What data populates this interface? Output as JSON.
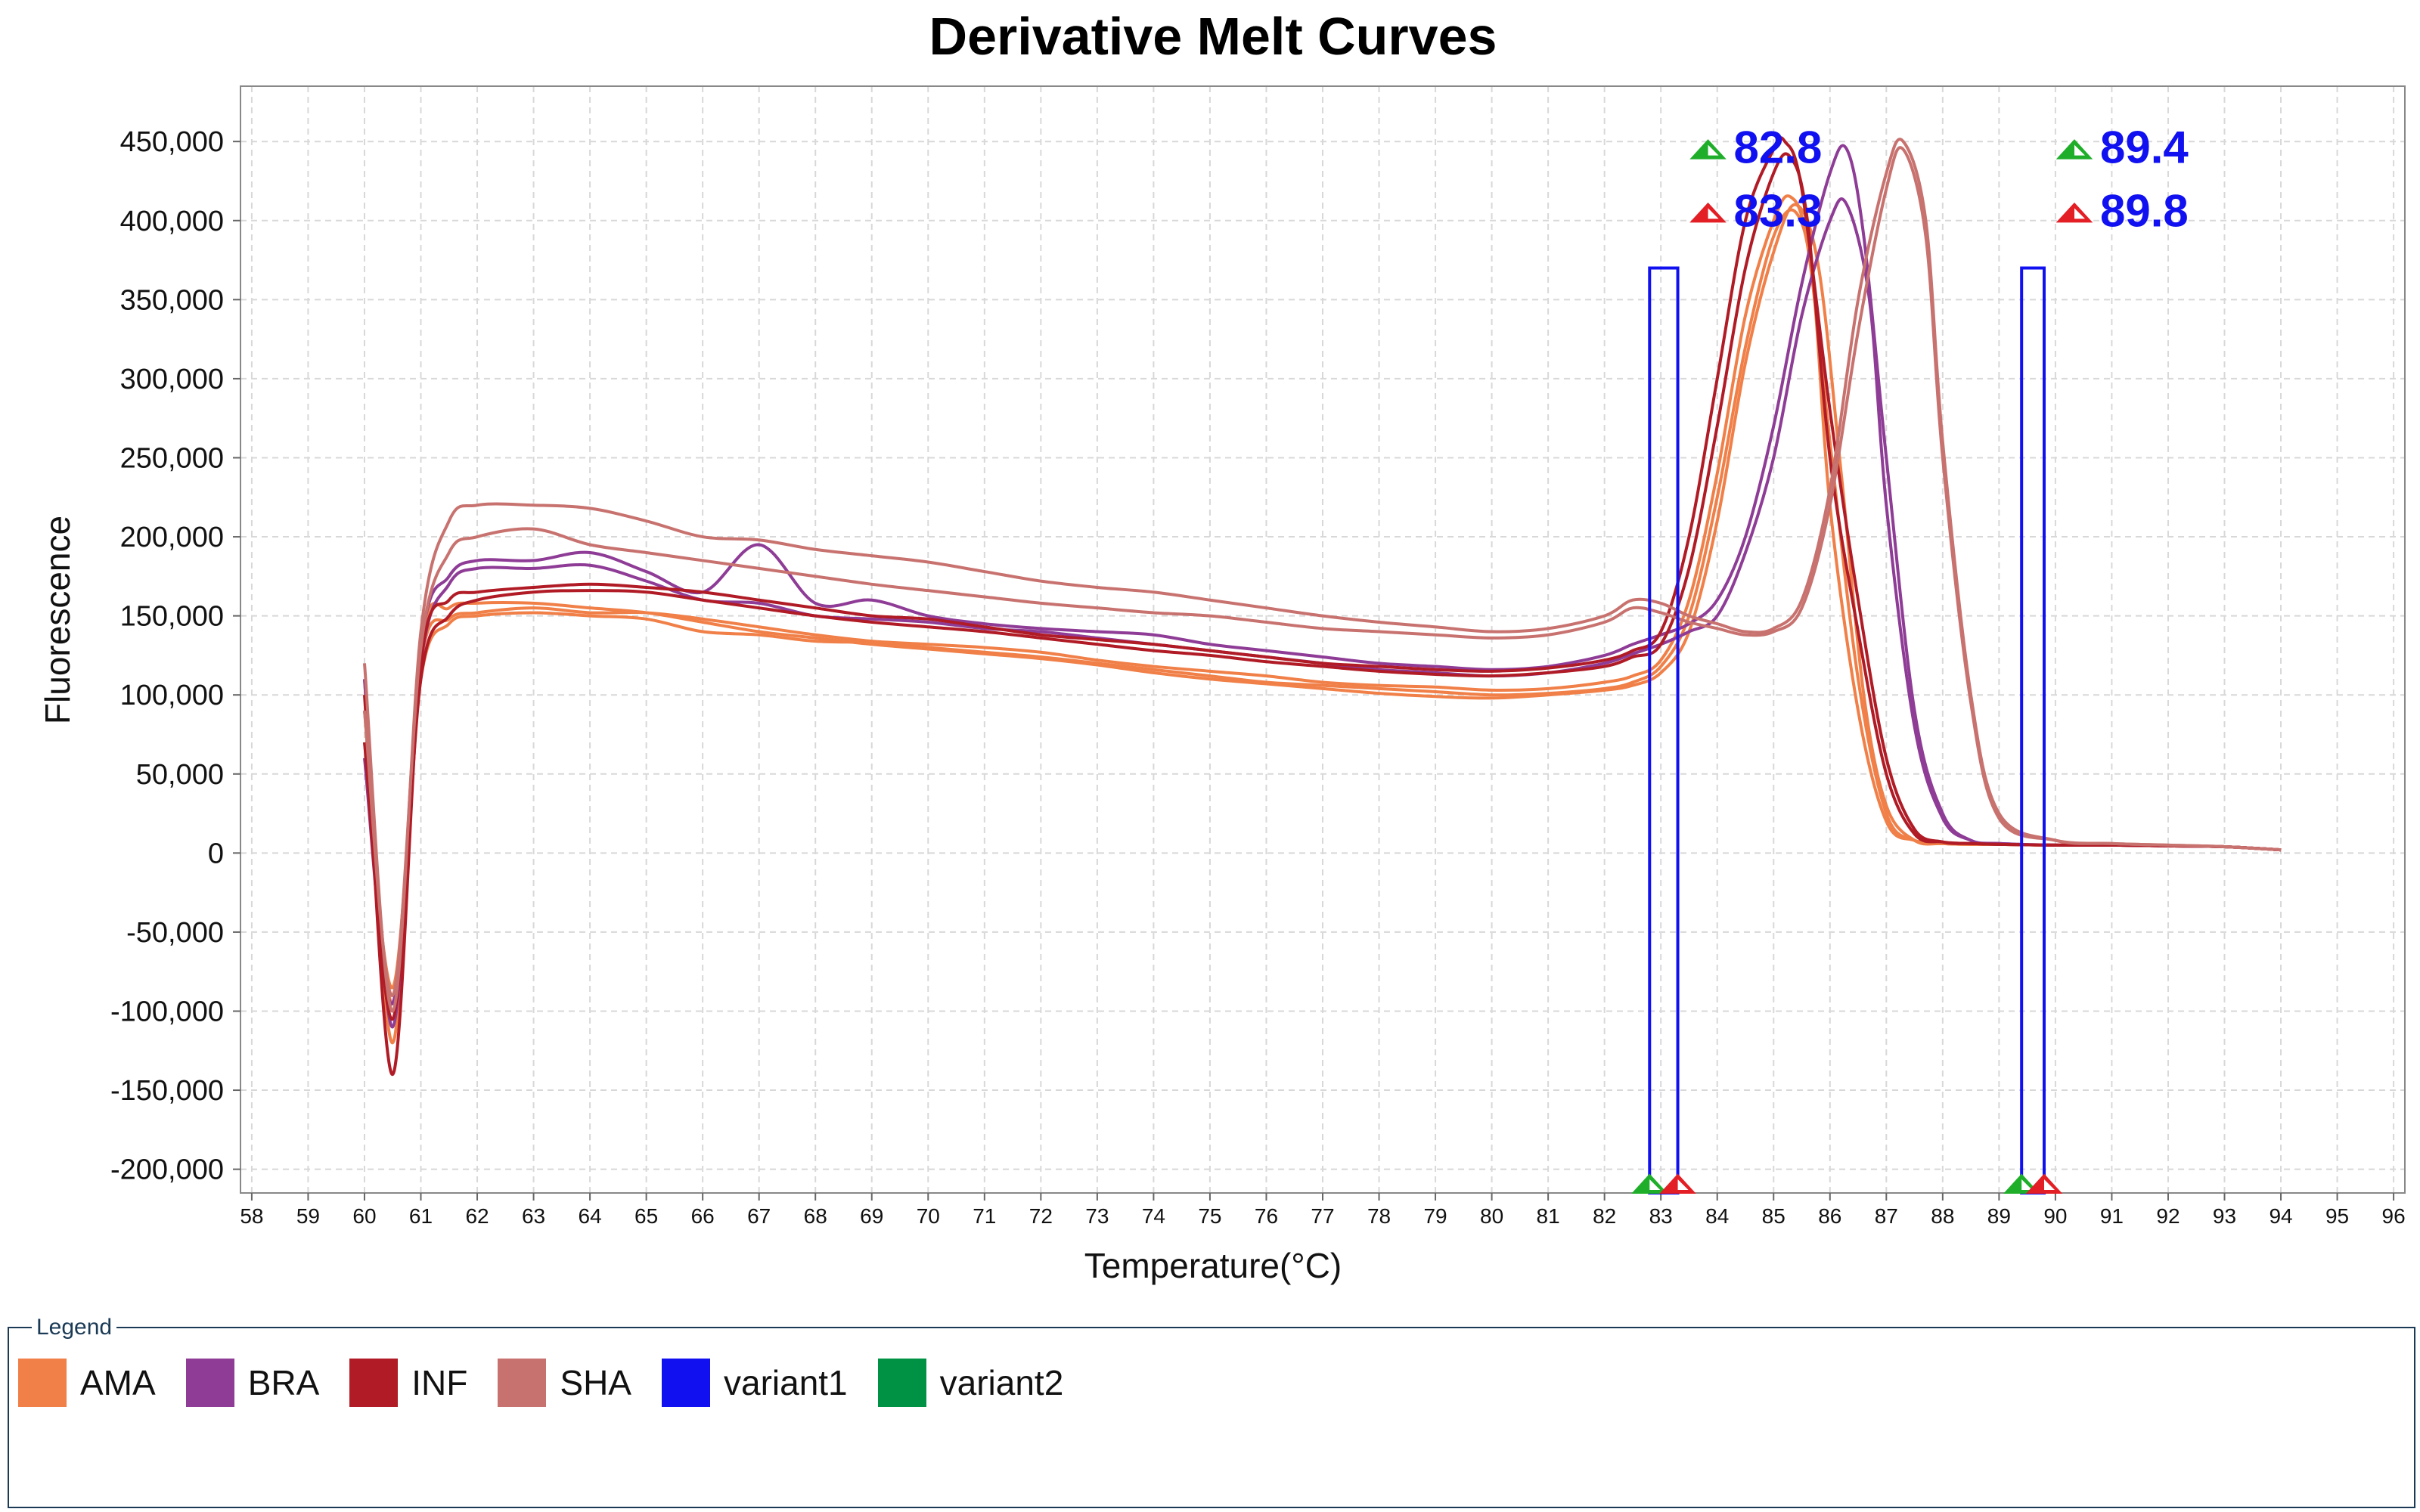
{
  "chart_data": {
    "type": "line",
    "title": "Derivative Melt Curves",
    "xlabel": "Temperature(°C)",
    "ylabel": "Fluorescence",
    "xlim": [
      57.8,
      96.2
    ],
    "ylim": [
      -215000,
      485000
    ],
    "x_ticks": [
      58,
      59,
      60,
      61,
      62,
      63,
      64,
      65,
      66,
      67,
      68,
      69,
      70,
      71,
      72,
      73,
      74,
      75,
      76,
      77,
      78,
      79,
      80,
      81,
      82,
      83,
      84,
      85,
      86,
      87,
      88,
      89,
      90,
      91,
      92,
      93,
      94,
      95,
      96
    ],
    "y_ticks": [
      450000,
      400000,
      350000,
      300000,
      250000,
      200000,
      150000,
      100000,
      50000,
      0,
      -50000,
      -100000,
      -150000,
      -200000
    ],
    "y_tick_labels": [
      "450,000",
      "400,000",
      "350,000",
      "300,000",
      "250,000",
      "200,000",
      "150,000",
      "100,000",
      "50,000",
      "0",
      "-50,000",
      "-100,000",
      "-150,000",
      "-200,000"
    ],
    "grid": true,
    "legend": {
      "title": "Legend",
      "placement": "bottom",
      "entries": [
        {
          "name": "AMA",
          "color": "#f07f48"
        },
        {
          "name": "BRA",
          "color": "#8e3c96"
        },
        {
          "name": "INF",
          "color": "#b01b25"
        },
        {
          "name": "SHA",
          "color": "#c8726f"
        },
        {
          "name": "variant1",
          "color": "#1010f0"
        },
        {
          "name": "variant2",
          "color": "#009244"
        }
      ]
    },
    "regions": [
      {
        "name": "variant1",
        "color": "#1010f0",
        "x_start": 82.8,
        "x_end": 83.3,
        "y_top": 370000
      },
      {
        "name": "variant2",
        "color": "#1010f0",
        "x_start": 89.4,
        "x_end": 89.8,
        "y_top": 370000
      }
    ],
    "markers": [
      {
        "label": "82.8",
        "x": 82.8,
        "color": "#1fae2a"
      },
      {
        "label": "83.3",
        "x": 83.3,
        "color": "#e31e24"
      },
      {
        "label": "89.4",
        "x": 89.4,
        "color": "#1fae2a"
      },
      {
        "label": "89.8",
        "x": 89.8,
        "color": "#e31e24"
      }
    ],
    "series": [
      {
        "name": "AMA",
        "color": "#f07f48",
        "x": [
          60,
          60.5,
          61,
          61.5,
          62,
          63,
          64,
          65,
          66,
          67,
          68,
          69,
          70,
          71,
          72,
          73,
          74,
          75,
          76,
          77,
          78,
          79,
          80,
          81,
          82,
          82.5,
          83,
          83.5,
          84,
          84.5,
          85,
          85.3,
          85.6,
          86,
          86.5,
          87,
          87.5,
          88,
          88.5,
          89,
          90,
          91,
          92,
          93,
          94
        ],
        "values": [
          90000,
          -95000,
          120000,
          148000,
          152000,
          155000,
          152000,
          152000,
          148000,
          143000,
          138000,
          134000,
          132000,
          130000,
          127000,
          122000,
          118000,
          115000,
          112000,
          108000,
          106000,
          105000,
          103000,
          104000,
          108000,
          112000,
          122000,
          160000,
          240000,
          340000,
          400000,
          415000,
          385000,
          260000,
          110000,
          25000,
          8000,
          6000,
          5500,
          5500,
          5000,
          5000,
          4500,
          4000,
          2000
        ]
      },
      {
        "name": "AMA",
        "color": "#f07f48",
        "x": [
          60,
          60.5,
          61,
          61.5,
          62,
          63,
          64,
          65,
          66,
          67,
          68,
          69,
          70,
          71,
          72,
          73,
          74,
          75,
          76,
          77,
          78,
          79,
          80,
          81,
          82,
          82.5,
          83,
          83.5,
          84,
          84.5,
          85,
          85.4,
          85.7,
          86,
          86.5,
          87,
          87.5,
          88,
          88.5,
          89,
          90,
          91,
          92,
          93,
          94
        ],
        "values": [
          70000,
          -85000,
          110000,
          145000,
          150000,
          152000,
          150000,
          148000,
          140000,
          138000,
          134000,
          133000,
          130000,
          127000,
          124000,
          120000,
          116000,
          112000,
          108000,
          106000,
          104000,
          102000,
          100000,
          101000,
          104000,
          108000,
          118000,
          150000,
          225000,
          320000,
          390000,
          405000,
          360000,
          220000,
          90000,
          20000,
          8000,
          6000,
          5500,
          5500,
          5000,
          5000,
          4500,
          4000,
          2000
        ]
      },
      {
        "name": "AMA",
        "color": "#f07f48",
        "x": [
          60,
          60.5,
          61,
          61.5,
          62,
          63,
          64,
          65,
          66,
          67,
          68,
          69,
          70,
          71,
          72,
          73,
          74,
          75,
          76,
          77,
          78,
          79,
          80,
          81,
          82,
          82.5,
          83,
          83.5,
          84,
          84.5,
          85,
          85.4,
          85.8,
          86.2,
          86.6,
          87,
          87.5,
          88,
          88.5,
          89,
          90,
          91,
          92,
          93,
          94
        ],
        "values": [
          110000,
          -120000,
          130000,
          155000,
          158000,
          158000,
          155000,
          152000,
          146000,
          140000,
          136000,
          132000,
          129000,
          126000,
          123000,
          119000,
          114000,
          110000,
          107000,
          104000,
          101000,
          99000,
          98000,
          100000,
          103000,
          106000,
          114000,
          140000,
          210000,
          310000,
          380000,
          410000,
          370000,
          240000,
          100000,
          30000,
          8000,
          6000,
          5500,
          5500,
          5000,
          5000,
          4500,
          4000,
          2000
        ]
      },
      {
        "name": "BRA",
        "color": "#8e3c96",
        "x": [
          60,
          60.5,
          61,
          61.5,
          62,
          63,
          64,
          65,
          66,
          67,
          68,
          69,
          70,
          71,
          72,
          73,
          74,
          75,
          76,
          77,
          78,
          79,
          80,
          81,
          82,
          82.5,
          83,
          83.5,
          84,
          84.5,
          85,
          85.5,
          86,
          86.3,
          86.6,
          87,
          87.5,
          88,
          88.5,
          89,
          90,
          91,
          92,
          93,
          94
        ],
        "values": [
          110000,
          -110000,
          130000,
          175000,
          185000,
          185000,
          190000,
          178000,
          165000,
          195000,
          158000,
          160000,
          150000,
          145000,
          142000,
          140000,
          138000,
          132000,
          128000,
          124000,
          120000,
          118000,
          116000,
          118000,
          125000,
          132000,
          138000,
          145000,
          160000,
          200000,
          270000,
          360000,
          430000,
          445000,
          390000,
          250000,
          90000,
          25000,
          8000,
          6000,
          5000,
          5000,
          4500,
          4000,
          2000
        ]
      },
      {
        "name": "BRA",
        "color": "#8e3c96",
        "x": [
          60,
          60.5,
          61,
          61.5,
          62,
          63,
          64,
          65,
          66,
          67,
          68,
          69,
          70,
          71,
          72,
          73,
          74,
          75,
          76,
          77,
          78,
          79,
          80,
          81,
          82,
          82.5,
          83,
          83.5,
          84,
          84.5,
          85,
          85.5,
          86,
          86.3,
          86.7,
          87,
          87.5,
          88,
          88.5,
          89,
          90,
          91,
          92,
          93,
          94
        ],
        "values": [
          60000,
          -95000,
          120000,
          170000,
          180000,
          180000,
          182000,
          172000,
          160000,
          158000,
          150000,
          148000,
          146000,
          142000,
          140000,
          136000,
          132000,
          128000,
          124000,
          120000,
          116000,
          114000,
          112000,
          114000,
          120000,
          126000,
          132000,
          140000,
          150000,
          190000,
          250000,
          340000,
          400000,
          410000,
          350000,
          220000,
          80000,
          22000,
          8000,
          6000,
          5000,
          5000,
          4500,
          4000,
          2000
        ]
      },
      {
        "name": "INF",
        "color": "#b01b25",
        "x": [
          60,
          60.5,
          61,
          61.5,
          62,
          63,
          64,
          65,
          66,
          67,
          68,
          69,
          70,
          71,
          72,
          73,
          74,
          75,
          76,
          77,
          78,
          79,
          80,
          81,
          82,
          82.5,
          83,
          83.5,
          84,
          84.5,
          85,
          85.2,
          85.5,
          86,
          86.5,
          87,
          87.5,
          88,
          88.5,
          89,
          90,
          91,
          92,
          93,
          94
        ],
        "values": [
          100000,
          -140000,
          120000,
          160000,
          165000,
          168000,
          170000,
          168000,
          165000,
          160000,
          155000,
          150000,
          148000,
          143000,
          138000,
          135000,
          132000,
          128000,
          124000,
          120000,
          118000,
          116000,
          115000,
          117000,
          122000,
          128000,
          140000,
          200000,
          300000,
          400000,
          445000,
          450000,
          420000,
          280000,
          160000,
          60000,
          15000,
          7000,
          6000,
          5500,
          5000,
          5000,
          4500,
          4000,
          2000
        ]
      },
      {
        "name": "INF",
        "color": "#b01b25",
        "x": [
          60,
          60.5,
          61,
          61.5,
          62,
          63,
          64,
          65,
          66,
          67,
          68,
          69,
          70,
          71,
          72,
          73,
          74,
          75,
          76,
          77,
          78,
          79,
          80,
          81,
          82,
          82.5,
          83,
          83.5,
          84,
          84.5,
          85,
          85.3,
          85.6,
          86,
          86.5,
          87,
          87.5,
          88,
          88.5,
          89,
          90,
          91,
          92,
          93,
          94
        ],
        "values": [
          70000,
          -105000,
          110000,
          150000,
          160000,
          165000,
          166000,
          165000,
          160000,
          155000,
          150000,
          146000,
          143000,
          140000,
          136000,
          132000,
          128000,
          125000,
          121000,
          118000,
          115000,
          113000,
          112000,
          114000,
          118000,
          124000,
          132000,
          180000,
          270000,
          370000,
          430000,
          440000,
          400000,
          250000,
          140000,
          50000,
          12000,
          7000,
          6000,
          5500,
          5000,
          5000,
          4500,
          4000,
          2000
        ]
      },
      {
        "name": "SHA",
        "color": "#c8726f",
        "x": [
          60,
          60.5,
          61,
          61.5,
          62,
          63,
          64,
          65,
          66,
          67,
          68,
          69,
          70,
          71,
          72,
          73,
          74,
          75,
          76,
          77,
          78,
          79,
          80,
          81,
          82,
          82.5,
          83,
          83.5,
          84,
          84.5,
          85,
          85.5,
          86,
          86.5,
          87,
          87.3,
          87.7,
          88,
          88.5,
          89,
          90,
          91,
          92,
          93,
          94
        ],
        "values": [
          120000,
          -100000,
          140000,
          210000,
          220000,
          220000,
          218000,
          210000,
          200000,
          198000,
          192000,
          188000,
          184000,
          178000,
          172000,
          168000,
          165000,
          160000,
          155000,
          150000,
          146000,
          143000,
          140000,
          142000,
          150000,
          160000,
          158000,
          150000,
          145000,
          140000,
          142000,
          160000,
          230000,
          350000,
          430000,
          450000,
          400000,
          260000,
          100000,
          25000,
          8000,
          6000,
          5000,
          4000,
          2000
        ]
      },
      {
        "name": "SHA",
        "color": "#c8726f",
        "x": [
          60,
          60.5,
          61,
          61.5,
          62,
          63,
          64,
          65,
          66,
          67,
          68,
          69,
          70,
          71,
          72,
          73,
          74,
          75,
          76,
          77,
          78,
          79,
          80,
          81,
          82,
          82.5,
          83,
          83.5,
          84,
          84.5,
          85,
          85.5,
          86,
          86.5,
          87,
          87.3,
          87.7,
          88,
          88.5,
          89,
          90,
          91,
          92,
          93,
          94
        ],
        "values": [
          90000,
          -90000,
          130000,
          190000,
          200000,
          205000,
          195000,
          190000,
          185000,
          180000,
          175000,
          170000,
          166000,
          162000,
          158000,
          155000,
          152000,
          150000,
          146000,
          142000,
          140000,
          138000,
          136000,
          138000,
          146000,
          155000,
          152000,
          146000,
          142000,
          138000,
          140000,
          155000,
          220000,
          330000,
          420000,
          445000,
          390000,
          250000,
          95000,
          22000,
          8000,
          6000,
          5000,
          4000,
          2000
        ]
      }
    ]
  }
}
